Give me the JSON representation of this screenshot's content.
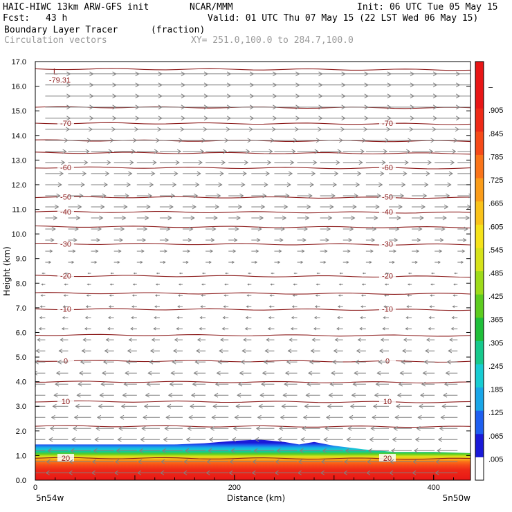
{
  "header": {
    "model": "HAIC-HIWC 13km ARW-GFS init",
    "org": "NCAR/MMM",
    "init": "Init: 06 UTC Tue 05 May 15",
    "fcst_label": "Fcst:",
    "fcst_value": "43 h",
    "valid": "Valid: 01 UTC Thu 07 May 15 (22 LST Wed 06 May 15)",
    "field": "Boundary Layer Tracer",
    "field_units": "(fraction)",
    "overlay": "Circulation vectors",
    "section": "XY= 251.0,100.0 to 284.7,100.0"
  },
  "chart_data": {
    "type": "heatmap",
    "title": "Boundary Layer Tracer (fraction)",
    "xlabel": "Distance (km)",
    "ylabel": "Height (km)",
    "xlim": [
      0,
      437
    ],
    "ylim": [
      0.0,
      17.0
    ],
    "x_ticks": [
      "0",
      "200",
      "400"
    ],
    "x_tick_values": [
      0,
      200,
      400
    ],
    "y_ticks": [
      "0.0",
      "1.0",
      "2.0",
      "3.0",
      "4.0",
      "5.0",
      "6.0",
      "7.0",
      "8.0",
      "9.0",
      "10.0",
      "11.0",
      "12.0",
      "13.0",
      "14.0",
      "15.0",
      "16.0",
      "17.0"
    ],
    "y_tick_values": [
      0,
      1,
      2,
      3,
      4,
      5,
      6,
      7,
      8,
      9,
      10,
      11,
      12,
      13,
      14,
      15,
      16,
      17
    ],
    "x_endpoints": [
      "5n54w",
      "5n50w"
    ],
    "colorbar": {
      "labels": [
        ".005",
        ".065",
        ".125",
        ".185",
        ".245",
        ".305",
        ".365",
        ".425",
        ".485",
        ".545",
        ".605",
        ".665",
        ".725",
        ".785",
        ".845",
        ".905",
        "–"
      ],
      "colors": [
        "#ffffff",
        "#1a1ad8",
        "#1e5ff0",
        "#19a6e8",
        "#17ccd2",
        "#16c98c",
        "#1fbf3a",
        "#5dcc1f",
        "#9edb1a",
        "#d6e21a",
        "#f5e21a",
        "#f9c21a",
        "#fa9c19",
        "#fa7419",
        "#f64a18",
        "#ee2a17",
        "#e81616",
        "#e81616"
      ]
    },
    "temperature_contours_C": [
      {
        "label": "-70",
        "height_km": 14.5
      },
      {
        "label": "-60",
        "height_km": 12.7
      },
      {
        "label": "-50",
        "height_km": 11.5
      },
      {
        "label": "-40",
        "height_km": 10.9
      },
      {
        "label": "-30",
        "height_km": 9.6
      },
      {
        "label": "-20",
        "height_km": 8.3
      },
      {
        "label": "-10",
        "height_km": 6.95
      },
      {
        "label": "0",
        "height_km": 4.85
      },
      {
        "label": "10",
        "height_km": 3.2
      },
      {
        "label": "20",
        "height_km": 0.9
      }
    ],
    "extra_contour_heights_km": [
      15.15,
      13.8,
      13.3,
      16.7,
      5.9,
      4.0,
      2.2,
      7.6,
      10.3
    ],
    "min_marker": {
      "label": "L",
      "value": "-79.31",
      "x_km": 18,
      "height_km": 16.25
    },
    "boundary_layer_top_km": [
      [
        0,
        1.45
      ],
      [
        50,
        1.45
      ],
      [
        100,
        1.45
      ],
      [
        140,
        1.45
      ],
      [
        170,
        1.5
      ],
      [
        200,
        1.6
      ],
      [
        225,
        1.65
      ],
      [
        250,
        1.55
      ],
      [
        265,
        1.45
      ],
      [
        280,
        1.55
      ],
      [
        300,
        1.4
      ],
      [
        330,
        1.25
      ],
      [
        360,
        1.15
      ],
      [
        400,
        1.15
      ],
      [
        437,
        1.1
      ]
    ],
    "wind_vectors": {
      "upper_direction": "eastward",
      "lower_direction": "westward",
      "reversal_height_km": 8.5
    },
    "colors": {
      "contour": "#8b1a1a",
      "vector": "#808080"
    }
  }
}
